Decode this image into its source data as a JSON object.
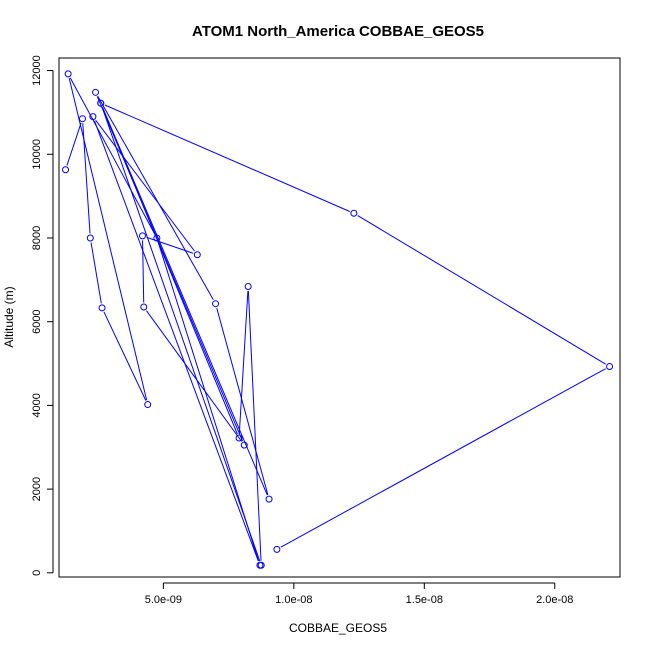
{
  "chart_data": {
    "type": "line",
    "title": "ATOM1 North_America COBBAE_GEOS5",
    "xlabel": "COBBAE_GEOS5",
    "ylabel": "Altitude (m)",
    "xlim": [
      1e-09,
      2.25e-08
    ],
    "ylim": [
      -100,
      12300
    ],
    "x_ticks": [
      5e-09,
      1e-08,
      1.5e-08,
      2e-08
    ],
    "x_tick_labels": [
      "5.0e-09",
      "1.0e-08",
      "1.5e-08",
      "2.0e-08"
    ],
    "y_ticks": [
      0,
      2000,
      4000,
      6000,
      8000,
      10000,
      12000
    ],
    "y_tick_labels": [
      "0",
      "2000",
      "4000",
      "6000",
      "8000",
      "10000",
      "12000"
    ],
    "grid": false,
    "legend": "none",
    "color": "#0000ff",
    "marker": "open-circle",
    "series": [
      {
        "x": [
          1.25e-09,
          1.9e-09,
          2.2e-09,
          2.65e-09,
          4.4e-09,
          1.35e-09,
          4.75e-09,
          8.7e-09,
          2.3e-09,
          6.3e-09,
          4.2e-09,
          4.25e-09,
          8.1e-09,
          2.4e-09,
          7e-09,
          9.05e-09,
          2.6e-09,
          7.9e-09,
          8.25e-09,
          8.75e-09,
          2.6e-09,
          1.23e-08,
          2.21e-08,
          9.35e-09
        ],
        "y": [
          9630,
          10850,
          8000,
          6330,
          4020,
          11920,
          8000,
          180,
          10900,
          7600,
          8050,
          6350,
          3050,
          11480,
          6430,
          1760,
          11220,
          3220,
          6840,
          180,
          11220,
          8590,
          4930,
          560
        ]
      }
    ]
  }
}
